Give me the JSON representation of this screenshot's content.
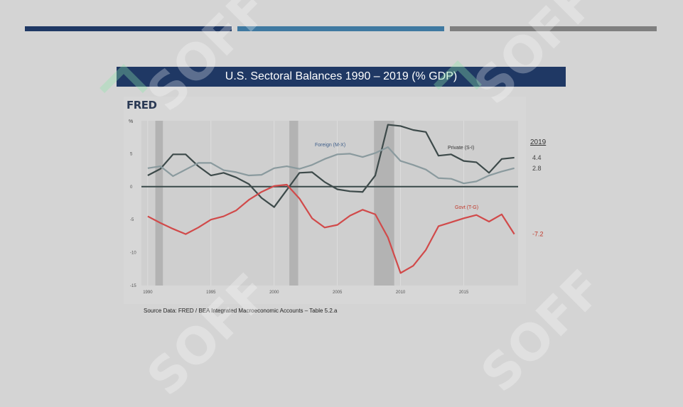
{
  "slide": {
    "title": "U.S. Sectoral Balances 1990 – 2019 (% GDP)",
    "source": "Source Data:  FRED / BEA Integrated Macroeconomic Accounts – Table 5.2.a",
    "watermark_text": "SOFF",
    "bar_colors": [
      "#1f3864",
      "#3f79a1",
      "#7f7f7f"
    ]
  },
  "fred": {
    "logo": "FRED"
  },
  "chart_data": {
    "type": "line",
    "ylabel": "%",
    "xlim": [
      1989.5,
      2019.3
    ],
    "ylim": [
      -15,
      10
    ],
    "yticks": [
      -15,
      -10,
      -5,
      0,
      5
    ],
    "xticks": [
      1990,
      1995,
      2000,
      2005,
      2010,
      2015
    ],
    "recessions": [
      [
        1990.6,
        1991.2
      ],
      [
        2001.2,
        2001.9
      ],
      [
        2007.9,
        2009.5
      ]
    ],
    "legend_header": "2019",
    "series": [
      {
        "name": "Private (S-I)",
        "color": "#3d4a4a",
        "end_label": "4.4",
        "x": [
          1990,
          1991,
          1992,
          1993,
          1994,
          1995,
          1996,
          1997,
          1998,
          1999,
          2000,
          2001,
          2002,
          2003,
          2004,
          2005,
          2006,
          2007,
          2008,
          2009,
          2010,
          2011,
          2012,
          2013,
          2014,
          2015,
          2016,
          2017,
          2018,
          2019
        ],
        "values": [
          1.7,
          2.7,
          4.9,
          4.9,
          3.1,
          1.7,
          2.1,
          1.4,
          0.4,
          -1.7,
          -3.1,
          -0.5,
          2.1,
          2.2,
          0.7,
          -0.4,
          -0.7,
          -0.8,
          1.7,
          9.4,
          9.2,
          8.6,
          8.3,
          4.7,
          4.9,
          3.9,
          3.7,
          2.1,
          4.2,
          4.4
        ]
      },
      {
        "name": "Foreign (M-X)",
        "color": "#8a9a9e",
        "end_label": "2.8",
        "x": [
          1990,
          1991,
          1992,
          1993,
          1994,
          1995,
          1996,
          1997,
          1998,
          1999,
          2000,
          2001,
          2002,
          2003,
          2004,
          2005,
          2006,
          2007,
          2008,
          2009,
          2010,
          2011,
          2012,
          2013,
          2014,
          2015,
          2016,
          2017,
          2018,
          2019
        ],
        "values": [
          2.8,
          3.1,
          1.6,
          2.6,
          3.6,
          3.6,
          2.5,
          2.2,
          1.7,
          1.8,
          2.8,
          3.1,
          2.7,
          3.3,
          4.2,
          4.9,
          5.0,
          4.5,
          5.1,
          6.0,
          3.9,
          3.3,
          2.6,
          1.3,
          1.2,
          0.5,
          0.8,
          1.7,
          2.3,
          2.8
        ]
      },
      {
        "name": "Govt (T-G)",
        "color": "#d14a4a",
        "end_label": "-7.2",
        "x": [
          1990,
          1991,
          1992,
          1993,
          1994,
          1995,
          1996,
          1997,
          1998,
          1999,
          2000,
          2001,
          2002,
          2003,
          2004,
          2005,
          2006,
          2007,
          2008,
          2009,
          2010,
          2011,
          2012,
          2013,
          2014,
          2015,
          2016,
          2017,
          2018,
          2019
        ],
        "values": [
          -4.5,
          -5.5,
          -6.4,
          -7.2,
          -6.2,
          -5.0,
          -4.5,
          -3.6,
          -2.0,
          -0.8,
          0.1,
          0.3,
          -1.8,
          -4.8,
          -6.2,
          -5.8,
          -4.4,
          -3.5,
          -4.2,
          -7.7,
          -13.1,
          -12.0,
          -9.6,
          -6.0,
          -5.4,
          -4.8,
          -4.3,
          -5.3,
          -4.2,
          -7.2
        ]
      }
    ]
  }
}
